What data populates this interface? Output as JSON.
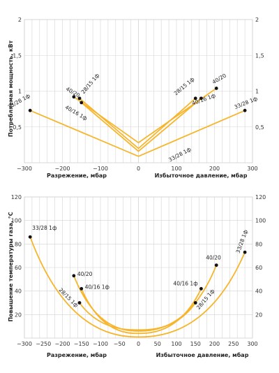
{
  "chart_data": [
    {
      "type": "line",
      "ylabel": "Потребляемая мощность, кВт",
      "xlabel_left": "Разрежение, мбар",
      "xlabel_right": "Избыточное давление, мбар",
      "xlim": [
        -300,
        300
      ],
      "ylim": [
        0,
        2
      ],
      "x_ticks": [
        -300,
        -200,
        -100,
        0,
        100,
        200,
        300
      ],
      "x_tick_labels": [
        "−300",
        "−200",
        "−100",
        "0",
        "100",
        "200",
        "300"
      ],
      "y_ticks": [
        0.5,
        1,
        1.5,
        2
      ],
      "y_tick_labels": [
        "0,5",
        "1",
        "1,5",
        "2"
      ],
      "series": [
        {
          "name": "33/28 1ф",
          "points": [
            [
              -285,
              0.73
            ],
            [
              0,
              0.09
            ],
            [
              280,
              0.73
            ]
          ],
          "end_labels": [
            "33/28 1ф",
            "33/28 1ф"
          ],
          "mid_label": "33/28 1ф"
        },
        {
          "name": "40/20",
          "points": [
            [
              -170,
              0.92
            ],
            [
              0,
              0.28
            ],
            [
              205,
              1.04
            ]
          ],
          "end_labels": [
            "40/20",
            "40/20"
          ]
        },
        {
          "name": "28/15 1ф",
          "points": [
            [
              -155,
              0.9
            ],
            [
              0,
              0.2
            ],
            [
              150,
              0.9
            ]
          ],
          "end_labels": [
            "28/15 1ф",
            "28/15 1ф"
          ]
        },
        {
          "name": "40/16 1ф",
          "points": [
            [
              -150,
              0.84
            ],
            [
              0,
              0.16
            ],
            [
              165,
              0.9
            ]
          ],
          "end_labels": [
            "40/16 1ф",
            "40/16 1ф"
          ]
        }
      ]
    },
    {
      "type": "line",
      "ylabel": "Повышение температуры газа, °С",
      "xlabel_left": "Разрежение, мбар",
      "xlabel_right": "Избыточное давление, мбар",
      "xlim": [
        -300,
        300
      ],
      "ylim": [
        0,
        120
      ],
      "x_ticks": [
        -300,
        -250,
        -200,
        -150,
        -100,
        -50,
        0,
        50,
        100,
        150,
        200,
        250,
        300
      ],
      "x_tick_labels": [
        "−300",
        "−250",
        "−200",
        "−150",
        "−100",
        "−50",
        "0",
        "50",
        "100",
        "150",
        "200",
        "250",
        "300"
      ],
      "y_ticks": [
        20,
        40,
        60,
        80,
        100,
        120
      ],
      "y_tick_labels": [
        "20",
        "40",
        "60",
        "80",
        "100",
        "120"
      ],
      "series": [
        {
          "name": "33/28 1ф",
          "points": [
            [
              -285,
              86
            ],
            [
              0,
              1
            ],
            [
              280,
              73
            ]
          ],
          "end_labels": [
            "33/28 1ф",
            "33/28 1ф"
          ]
        },
        {
          "name": "40/20",
          "points": [
            [
              -170,
              53
            ],
            [
              0,
              6
            ],
            [
              205,
              62
            ]
          ],
          "end_labels": [
            "40/20",
            "40/20"
          ]
        },
        {
          "name": "40/16 1ф",
          "points": [
            [
              -150,
              42
            ],
            [
              0,
              4
            ],
            [
              165,
              42
            ]
          ],
          "end_labels": [
            "40/16 1ф",
            "40/16 1ф"
          ]
        },
        {
          "name": "28/15 1ф",
          "points": [
            [
              -155,
              30
            ],
            [
              0,
              7
            ],
            [
              150,
              30
            ]
          ],
          "end_labels": [
            "28/15 1ф",
            "28/15 1ф"
          ]
        }
      ]
    }
  ]
}
